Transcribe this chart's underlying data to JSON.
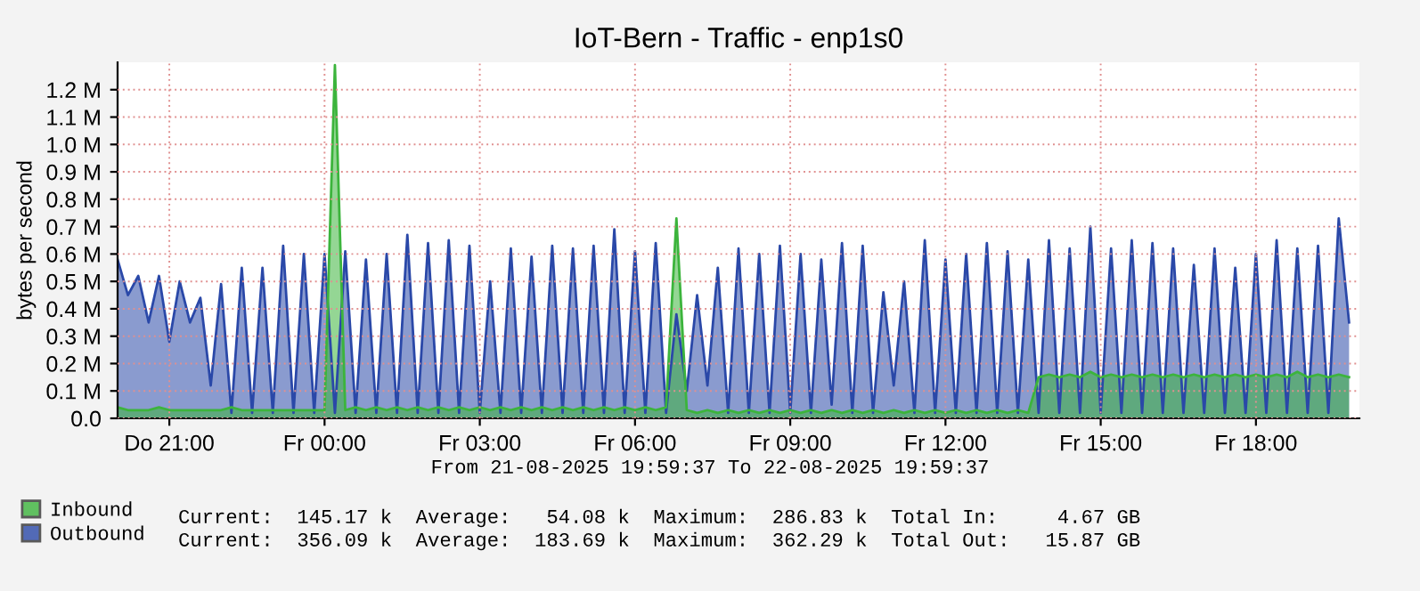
{
  "chart_data": {
    "type": "area",
    "title": "IoT-Bern - Traffic - enp1s0",
    "ylabel": "bytes per second",
    "legend": "bottom left",
    "grid": true,
    "xlim": [
      "2025-08-21T20:00",
      "2025-08-22T20:00"
    ],
    "xticks": [
      {
        "value": "2025-08-21T21:00",
        "label": "Do 21:00"
      },
      {
        "value": "2025-08-22T00:00",
        "label": "Fr 00:00"
      },
      {
        "value": "2025-08-22T03:00",
        "label": "Fr 03:00"
      },
      {
        "value": "2025-08-22T06:00",
        "label": "Fr 06:00"
      },
      {
        "value": "2025-08-22T09:00",
        "label": "Fr 09:00"
      },
      {
        "value": "2025-08-22T12:00",
        "label": "Fr 12:00"
      },
      {
        "value": "2025-08-22T15:00",
        "label": "Fr 15:00"
      },
      {
        "value": "2025-08-22T18:00",
        "label": "Fr 18:00"
      }
    ],
    "ylim": [
      0,
      1.3
    ],
    "yticks": [
      {
        "value": 0,
        "label": "0.0"
      },
      {
        "value": 0.1,
        "label": "0.1 M"
      },
      {
        "value": 0.2,
        "label": "0.2 M"
      },
      {
        "value": 0.3,
        "label": "0.3 M"
      },
      {
        "value": 0.4,
        "label": "0.4 M"
      },
      {
        "value": 0.5,
        "label": "0.5 M"
      },
      {
        "value": 0.6,
        "label": "0.6 M"
      },
      {
        "value": 0.7,
        "label": "0.7 M"
      },
      {
        "value": 0.8,
        "label": "0.8 M"
      },
      {
        "value": 0.9,
        "label": "0.9 M"
      },
      {
        "value": 1.0,
        "label": "1.0 M"
      },
      {
        "value": 1.1,
        "label": "1.1 M"
      },
      {
        "value": 1.2,
        "label": "1.2 M"
      }
    ],
    "x": [
      "2025-08-21T20:00",
      "2025-08-21T20:12",
      "2025-08-21T20:24",
      "2025-08-21T20:36",
      "2025-08-21T20:48",
      "2025-08-21T21:00",
      "2025-08-21T21:12",
      "2025-08-21T21:24",
      "2025-08-21T21:36",
      "2025-08-21T21:48",
      "2025-08-21T22:00",
      "2025-08-21T22:12",
      "2025-08-21T22:24",
      "2025-08-21T22:36",
      "2025-08-21T22:48",
      "2025-08-21T23:00",
      "2025-08-21T23:12",
      "2025-08-21T23:24",
      "2025-08-21T23:36",
      "2025-08-21T23:48",
      "2025-08-22T00:00",
      "2025-08-22T00:12",
      "2025-08-22T00:24",
      "2025-08-22T00:36",
      "2025-08-22T00:48",
      "2025-08-22T01:00",
      "2025-08-22T01:12",
      "2025-08-22T01:24",
      "2025-08-22T01:36",
      "2025-08-22T01:48",
      "2025-08-22T02:00",
      "2025-08-22T02:12",
      "2025-08-22T02:24",
      "2025-08-22T02:36",
      "2025-08-22T02:48",
      "2025-08-22T03:00",
      "2025-08-22T03:12",
      "2025-08-22T03:24",
      "2025-08-22T03:36",
      "2025-08-22T03:48",
      "2025-08-22T04:00",
      "2025-08-22T04:12",
      "2025-08-22T04:24",
      "2025-08-22T04:36",
      "2025-08-22T04:48",
      "2025-08-22T05:00",
      "2025-08-22T05:12",
      "2025-08-22T05:24",
      "2025-08-22T05:36",
      "2025-08-22T05:48",
      "2025-08-22T06:00",
      "2025-08-22T06:12",
      "2025-08-22T06:24",
      "2025-08-22T06:36",
      "2025-08-22T06:48",
      "2025-08-22T07:00",
      "2025-08-22T07:12",
      "2025-08-22T07:24",
      "2025-08-22T07:36",
      "2025-08-22T07:48",
      "2025-08-22T08:00",
      "2025-08-22T08:12",
      "2025-08-22T08:24",
      "2025-08-22T08:36",
      "2025-08-22T08:48",
      "2025-08-22T09:00",
      "2025-08-22T09:12",
      "2025-08-22T09:24",
      "2025-08-22T09:36",
      "2025-08-22T09:48",
      "2025-08-22T10:00",
      "2025-08-22T10:12",
      "2025-08-22T10:24",
      "2025-08-22T10:36",
      "2025-08-22T10:48",
      "2025-08-22T11:00",
      "2025-08-22T11:12",
      "2025-08-22T11:24",
      "2025-08-22T11:36",
      "2025-08-22T11:48",
      "2025-08-22T12:00",
      "2025-08-22T12:12",
      "2025-08-22T12:24",
      "2025-08-22T12:36",
      "2025-08-22T12:48",
      "2025-08-22T13:00",
      "2025-08-22T13:12",
      "2025-08-22T13:24",
      "2025-08-22T13:36",
      "2025-08-22T13:48",
      "2025-08-22T14:00",
      "2025-08-22T14:12",
      "2025-08-22T14:24",
      "2025-08-22T14:36",
      "2025-08-22T14:48",
      "2025-08-22T15:00",
      "2025-08-22T15:12",
      "2025-08-22T15:24",
      "2025-08-22T15:36",
      "2025-08-22T15:48",
      "2025-08-22T16:00",
      "2025-08-22T16:12",
      "2025-08-22T16:24",
      "2025-08-22T16:36",
      "2025-08-22T16:48",
      "2025-08-22T17:00",
      "2025-08-22T17:12",
      "2025-08-22T17:24",
      "2025-08-22T17:36",
      "2025-08-22T17:48",
      "2025-08-22T18:00",
      "2025-08-22T18:12",
      "2025-08-22T18:24",
      "2025-08-22T18:36",
      "2025-08-22T18:48",
      "2025-08-22T19:00",
      "2025-08-22T19:12",
      "2025-08-22T19:24",
      "2025-08-22T19:36",
      "2025-08-22T19:48"
    ],
    "series": [
      {
        "name": "Outbound",
        "color": "#2a48a8",
        "values": [
          0.58,
          0.45,
          0.52,
          0.35,
          0.52,
          0.28,
          0.5,
          0.35,
          0.44,
          0.12,
          0.49,
          0.02,
          0.55,
          0.02,
          0.55,
          0.02,
          0.63,
          0.02,
          0.6,
          0.02,
          0.6,
          0.02,
          0.61,
          0.02,
          0.58,
          0.02,
          0.6,
          0.02,
          0.67,
          0.02,
          0.64,
          0.02,
          0.65,
          0.02,
          0.63,
          0.02,
          0.5,
          0.02,
          0.62,
          0.02,
          0.59,
          0.02,
          0.63,
          0.02,
          0.62,
          0.02,
          0.63,
          0.02,
          0.69,
          0.02,
          0.61,
          0.02,
          0.64,
          0.02,
          0.38,
          0.1,
          0.45,
          0.12,
          0.55,
          0.02,
          0.62,
          0.02,
          0.6,
          0.02,
          0.63,
          0.02,
          0.6,
          0.02,
          0.58,
          0.05,
          0.64,
          0.02,
          0.63,
          0.02,
          0.46,
          0.12,
          0.5,
          0.02,
          0.65,
          0.02,
          0.58,
          0.02,
          0.6,
          0.02,
          0.64,
          0.02,
          0.61,
          0.02,
          0.58,
          0.02,
          0.65,
          0.02,
          0.62,
          0.02,
          0.7,
          0.02,
          0.62,
          0.02,
          0.65,
          0.02,
          0.64,
          0.02,
          0.62,
          0.02,
          0.56,
          0.02,
          0.62,
          0.02,
          0.55,
          0.02,
          0.6,
          0.02,
          0.65,
          0.02,
          0.62,
          0.02,
          0.63,
          0.02,
          0.73,
          0.35
        ]
      },
      {
        "name": "Inbound",
        "color": "#3cb43c",
        "values": [
          0.04,
          0.03,
          0.03,
          0.03,
          0.04,
          0.03,
          0.03,
          0.03,
          0.03,
          0.03,
          0.03,
          0.04,
          0.03,
          0.03,
          0.03,
          0.03,
          0.03,
          0.03,
          0.03,
          0.03,
          0.03,
          1.29,
          0.03,
          0.04,
          0.03,
          0.04,
          0.03,
          0.04,
          0.03,
          0.04,
          0.03,
          0.04,
          0.03,
          0.04,
          0.03,
          0.04,
          0.03,
          0.04,
          0.03,
          0.04,
          0.03,
          0.04,
          0.03,
          0.04,
          0.03,
          0.04,
          0.03,
          0.04,
          0.03,
          0.04,
          0.03,
          0.04,
          0.03,
          0.04,
          0.73,
          0.03,
          0.02,
          0.03,
          0.02,
          0.03,
          0.02,
          0.03,
          0.02,
          0.03,
          0.02,
          0.03,
          0.02,
          0.03,
          0.02,
          0.03,
          0.02,
          0.03,
          0.02,
          0.03,
          0.02,
          0.03,
          0.02,
          0.03,
          0.02,
          0.03,
          0.02,
          0.03,
          0.02,
          0.03,
          0.02,
          0.03,
          0.02,
          0.03,
          0.02,
          0.15,
          0.16,
          0.15,
          0.16,
          0.15,
          0.17,
          0.15,
          0.16,
          0.15,
          0.16,
          0.15,
          0.16,
          0.15,
          0.16,
          0.15,
          0.16,
          0.15,
          0.16,
          0.15,
          0.16,
          0.15,
          0.16,
          0.15,
          0.16,
          0.15,
          0.17,
          0.15,
          0.16,
          0.15,
          0.16,
          0.15
        ]
      }
    ],
    "annotations": [
      "From 21-08-2025 19:59:37 To 22-08-2025 19:59:37",
      "Current:  145.17 k  Average:   54.08 k  Maximum:  286.83 k  Total In:     4.67 GB",
      "Current:  356.09 k  Average:  183.69 k  Maximum:  362.29 k  Total Out:   15.87 GB"
    ]
  }
}
